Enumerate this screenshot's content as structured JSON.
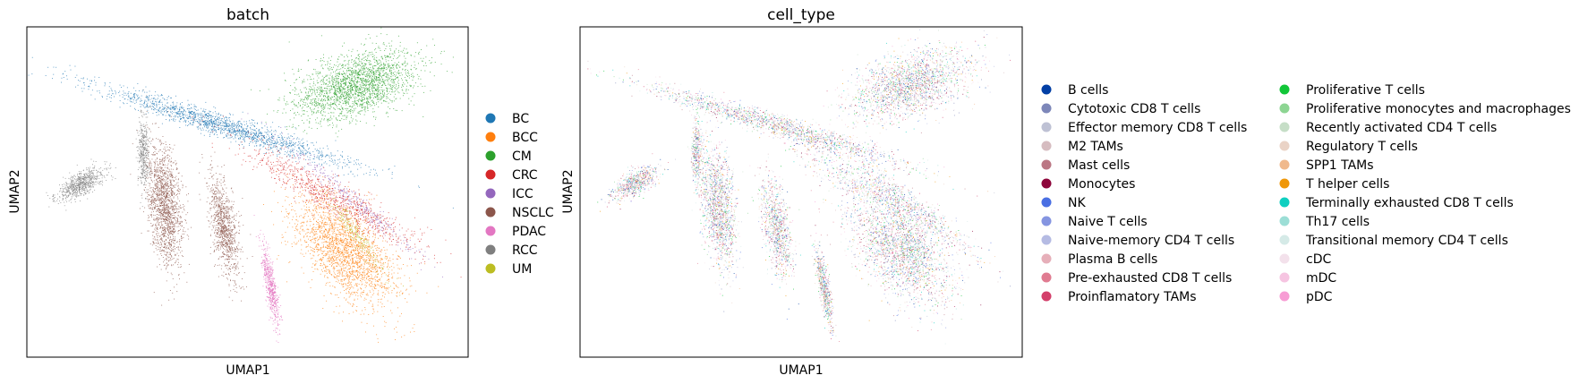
{
  "chart_data": [
    {
      "type": "scatter",
      "title": "batch",
      "xlabel": "UMAP1",
      "ylabel": "UMAP2",
      "grid": false,
      "legend_position": "right",
      "legend_entries": [
        {
          "name": "BC",
          "color": "#1f77b4"
        },
        {
          "name": "BCC",
          "color": "#ff7f0e"
        },
        {
          "name": "CM",
          "color": "#2ca02c"
        },
        {
          "name": "CRC",
          "color": "#d62728"
        },
        {
          "name": "ICC",
          "color": "#9467bd"
        },
        {
          "name": "NSCLC",
          "color": "#8c564b"
        },
        {
          "name": "PDAC",
          "color": "#e377c2"
        },
        {
          "name": "RCC",
          "color": "#7f7f7f"
        },
        {
          "name": "UM",
          "color": "#bcbd22"
        }
      ]
    },
    {
      "type": "scatter",
      "title": "cell_type",
      "xlabel": "UMAP1",
      "ylabel": "UMAP2",
      "grid": false,
      "legend_position": "right",
      "legend_columns": 2,
      "legend_entries": [
        {
          "name": "B cells",
          "color": "#023fa5"
        },
        {
          "name": "Cytotoxic CD8 T cells",
          "color": "#7d87b9"
        },
        {
          "name": "Effector memory CD8 T cells",
          "color": "#bec1d4"
        },
        {
          "name": "M2 TAMs",
          "color": "#d6bcc0"
        },
        {
          "name": "Mast cells",
          "color": "#bb7784"
        },
        {
          "name": "Monocytes",
          "color": "#8e063b"
        },
        {
          "name": "NK",
          "color": "#4a6fe3"
        },
        {
          "name": "Naive T cells",
          "color": "#8595e1"
        },
        {
          "name": "Naive-memory CD4 T cells",
          "color": "#b5bbe3"
        },
        {
          "name": "Plasma B cells",
          "color": "#e6afb9"
        },
        {
          "name": "Pre-exhausted CD8 T cells",
          "color": "#e07b91"
        },
        {
          "name": "Proinflamatory TAMs",
          "color": "#d33f6a"
        },
        {
          "name": "Proliferative T cells",
          "color": "#11c638"
        },
        {
          "name": "Proliferative monocytes and macrophages",
          "color": "#8dd593"
        },
        {
          "name": "Recently activated CD4 T cells",
          "color": "#c6dec7"
        },
        {
          "name": "Regulatory T cells",
          "color": "#ead3c6"
        },
        {
          "name": "SPP1 TAMs",
          "color": "#f0b98d"
        },
        {
          "name": "T helper cells",
          "color": "#ef9708"
        },
        {
          "name": "Terminally exhausted CD8 T cells",
          "color": "#0fcfc0"
        },
        {
          "name": "Th17 cells",
          "color": "#9cded6"
        },
        {
          "name": "Transitional memory CD4 T cells",
          "color": "#d5eae7"
        },
        {
          "name": "cDC",
          "color": "#f3e1eb"
        },
        {
          "name": "mDC",
          "color": "#f6c4e1"
        },
        {
          "name": "pDC",
          "color": "#f79cd4"
        }
      ]
    }
  ]
}
